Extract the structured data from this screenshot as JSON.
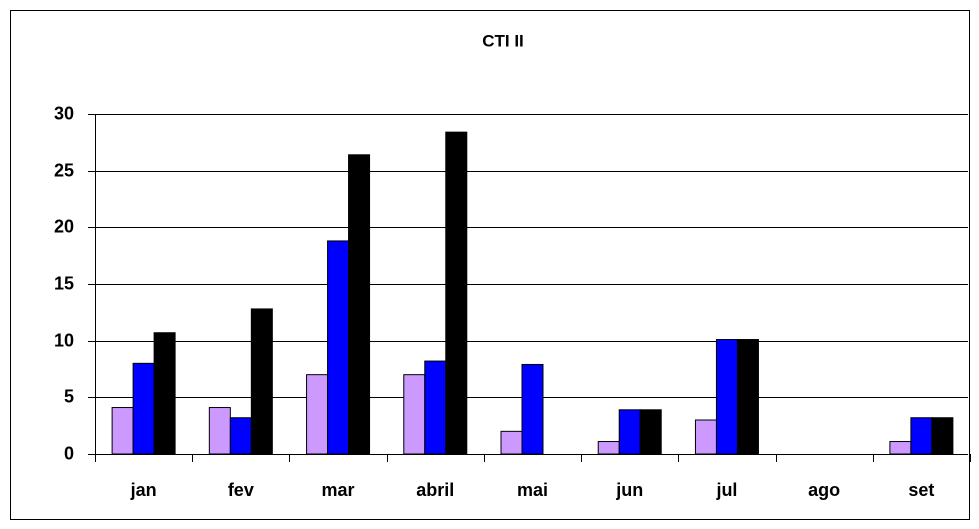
{
  "chart_data": {
    "type": "bar",
    "title": "CTI II",
    "categories": [
      "jan",
      "fev",
      "mar",
      "abril",
      "mai",
      "jun",
      "jul",
      "ago",
      "set"
    ],
    "series": [
      {
        "color": "#cc99ff",
        "values": [
          4.1,
          4.1,
          7,
          7,
          2,
          1.1,
          3,
          0,
          1.1
        ]
      },
      {
        "color": "#0000ff",
        "values": [
          8,
          3.2,
          18.8,
          8.2,
          7.9,
          3.9,
          10.1,
          0,
          3.2
        ]
      },
      {
        "color": "#000000",
        "values": [
          10.7,
          12.8,
          26.4,
          28.4,
          0,
          3.9,
          10.1,
          0,
          3.2
        ]
      }
    ],
    "ylim": [
      0,
      30
    ],
    "yticks": [
      0,
      5,
      10,
      15,
      20,
      25,
      30
    ],
    "grid": true
  }
}
